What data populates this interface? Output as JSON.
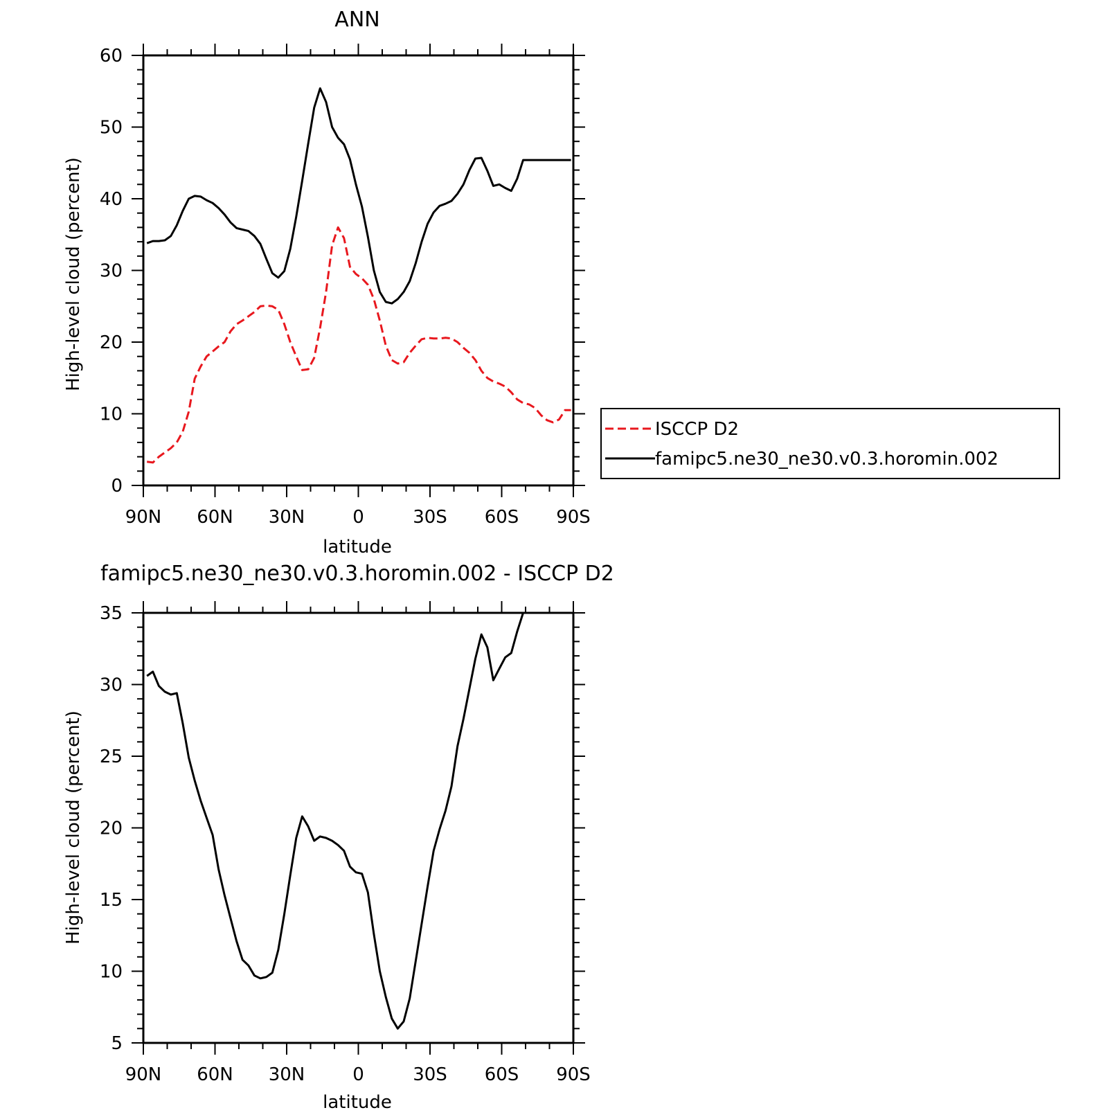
{
  "chart_data": [
    {
      "type": "line",
      "title": "ANN",
      "xlabel": "latitude",
      "ylabel": "High-level cloud (percent)",
      "xlim": [
        90,
        -90
      ],
      "ylim": [
        0,
        60
      ],
      "xticks": [
        {
          "value": 90,
          "label": "90N"
        },
        {
          "value": 60,
          "label": "60N"
        },
        {
          "value": 30,
          "label": "30N"
        },
        {
          "value": 0,
          "label": "0"
        },
        {
          "value": -30,
          "label": "30S"
        },
        {
          "value": -60,
          "label": "60S"
        },
        {
          "value": -90,
          "label": "90S"
        }
      ],
      "yticks": [
        {
          "value": 0,
          "label": "0"
        },
        {
          "value": 10,
          "label": "10"
        },
        {
          "value": 20,
          "label": "20"
        },
        {
          "value": 30,
          "label": "30"
        },
        {
          "value": 40,
          "label": "40"
        },
        {
          "value": 50,
          "label": "50"
        },
        {
          "value": 60,
          "label": "60"
        }
      ],
      "grid": false,
      "legend_position": "right",
      "series": [
        {
          "name": "ISCCP D2",
          "color": "#e8181e",
          "dash": "dashed",
          "x": [
            88.5,
            86,
            83.5,
            81,
            78.5,
            76,
            73.5,
            71,
            68.5,
            66,
            63.5,
            61,
            58.5,
            56,
            53.5,
            51,
            48.5,
            46,
            43.5,
            41,
            38.5,
            36,
            33.5,
            31,
            28.5,
            26,
            23.5,
            21,
            18.5,
            16,
            13.5,
            11,
            8.5,
            6,
            3.5,
            1,
            -1.5,
            -4,
            -6.5,
            -9,
            -11.5,
            -14,
            -16.5,
            -19,
            -21.5,
            -24,
            -26.5,
            -29,
            -31.5,
            -34,
            -36.5,
            -39,
            -41.5,
            -44,
            -46.5,
            -49,
            -51.5,
            -54,
            -56.5,
            -59,
            -61.5,
            -64,
            -66.5,
            -69,
            -71.5,
            -74,
            -76.5,
            -79,
            -81.5,
            -84,
            -86.5,
            -89
          ],
          "y": [
            3.3,
            3.2,
            4,
            4.6,
            5.2,
            6,
            7.5,
            10.3,
            14.9,
            16.6,
            18,
            18.7,
            19.4,
            20,
            21.5,
            22.5,
            23,
            23.6,
            24.2,
            25,
            25.1,
            25,
            24.5,
            22.5,
            20,
            18,
            16.1,
            16.2,
            17.8,
            22,
            27,
            33.5,
            36,
            34.5,
            30.5,
            29.5,
            28.9,
            28,
            26,
            23,
            19.5,
            17.5,
            17,
            17.2,
            18.5,
            19.5,
            20.4,
            20.6,
            20.5,
            20.5,
            20.6,
            20.5,
            20,
            19.2,
            18.5,
            17.5,
            16,
            15,
            14.5,
            14.2,
            13.8,
            13,
            12,
            11.5,
            11.3,
            10.8,
            9.8,
            9.1,
            8.8,
            9.2,
            10.5,
            10.5
          ]
        },
        {
          "name": "famipc5.ne30_ne30.v0.3.horomin.002",
          "color": "#000000",
          "dash": "solid",
          "x": [
            88.5,
            86,
            83.5,
            81,
            78.5,
            76,
            73.5,
            71,
            68.5,
            66,
            63.5,
            61,
            58.5,
            56,
            53.5,
            51,
            48.5,
            46,
            43.5,
            41,
            38.5,
            36,
            33.5,
            31,
            28.5,
            26,
            23.5,
            21,
            18.5,
            16,
            13.5,
            11,
            8.5,
            6,
            3.5,
            1,
            -1.5,
            -4,
            -6.5,
            -9,
            -11.5,
            -14,
            -16.5,
            -19,
            -21.5,
            -24,
            -26.5,
            -29,
            -31.5,
            -34,
            -36.5,
            -39,
            -41.5,
            -44,
            -46.5,
            -49,
            -51.5,
            -54,
            -56.5,
            -59,
            -61.5,
            -64,
            -66.5,
            -69,
            -71.5,
            -74,
            -76.5,
            -79,
            -81.5,
            -84,
            -86.5,
            -89
          ],
          "y": [
            33.8,
            34.1,
            34.1,
            34.2,
            34.8,
            36.3,
            38.3,
            40,
            40.4,
            40.3,
            39.8,
            39.4,
            38.7,
            37.8,
            36.7,
            35.9,
            35.7,
            35.5,
            34.8,
            33.7,
            31.6,
            29.6,
            29,
            29.9,
            33,
            37.5,
            42.5,
            47.7,
            52.7,
            55.4,
            53.5,
            50,
            48.5,
            47.6,
            45.5,
            42,
            38.9,
            34.7,
            30,
            27,
            25.6,
            25.4,
            26,
            27,
            28.5,
            31,
            34,
            36.5,
            38.1,
            39,
            39.3,
            39.7,
            40.7,
            42,
            44,
            45.6,
            45.7,
            43.9,
            41.8,
            42,
            41.5,
            41.1,
            42.8,
            45.4,
            45.4,
            45.4,
            45.4,
            45.4,
            45.4,
            45.4,
            45.4,
            45.4
          ]
        }
      ]
    },
    {
      "type": "line",
      "title": "famipc5.ne30_ne30.v0.3.horomin.002 - ISCCP D2",
      "xlabel": "latitude",
      "ylabel": "High-level cloud (percent)",
      "xlim": [
        90,
        -90
      ],
      "ylim": [
        5,
        35
      ],
      "xticks": [
        {
          "value": 90,
          "label": "90N"
        },
        {
          "value": 60,
          "label": "60N"
        },
        {
          "value": 30,
          "label": "30N"
        },
        {
          "value": 0,
          "label": "0"
        },
        {
          "value": -30,
          "label": "30S"
        },
        {
          "value": -60,
          "label": "60S"
        },
        {
          "value": -90,
          "label": "90S"
        }
      ],
      "yticks": [
        {
          "value": 5,
          "label": "5"
        },
        {
          "value": 10,
          "label": "10"
        },
        {
          "value": 15,
          "label": "15"
        },
        {
          "value": 20,
          "label": "20"
        },
        {
          "value": 25,
          "label": "25"
        },
        {
          "value": 30,
          "label": "30"
        },
        {
          "value": 35,
          "label": "35"
        }
      ],
      "grid": false,
      "series": [
        {
          "name": "",
          "color": "#000000",
          "dash": "solid",
          "x": [
            88.5,
            86,
            83.5,
            81,
            78.5,
            76,
            73.5,
            71,
            68.5,
            66,
            63.5,
            61,
            58.5,
            56,
            53.5,
            51,
            48.5,
            46,
            43.5,
            41,
            38.5,
            36,
            33.5,
            31,
            28.5,
            26,
            23.5,
            21,
            18.5,
            16,
            13.5,
            11,
            8.5,
            6,
            3.5,
            1,
            -1.5,
            -4,
            -6.5,
            -9,
            -11.5,
            -14,
            -16.5,
            -19,
            -21.5,
            -24,
            -26.5,
            -29,
            -31.5,
            -34,
            -36.5,
            -39,
            -41.5,
            -44,
            -46.5,
            -49,
            -51.5,
            -54,
            -56.5,
            -59,
            -61.5,
            -64,
            -66.5,
            -69,
            -71.5,
            -74,
            -76.5,
            -79,
            -81.5,
            -84,
            -86.5,
            -89
          ],
          "y": [
            30.6,
            30.9,
            29.9,
            29.5,
            29.3,
            29.4,
            27.3,
            24.9,
            23.3,
            21.9,
            20.7,
            19.5,
            17.1,
            15.3,
            13.7,
            12.1,
            10.8,
            10.4,
            9.7,
            9.5,
            9.6,
            9.9,
            11.5,
            14,
            16.7,
            19.3,
            20.8,
            20.1,
            19.1,
            19.4,
            19.3,
            19.1,
            18.8,
            18.4,
            17.3,
            16.9,
            16.8,
            15.5,
            12.6,
            10,
            8.2,
            6.7,
            6,
            6.5,
            8.1,
            10.7,
            13.3,
            15.9,
            18.4,
            19.9,
            21.2,
            22.9,
            25.7,
            27.6,
            29.7,
            31.8,
            33.5,
            32.6,
            30.3,
            31.1,
            31.9,
            32.2,
            33.7,
            35,
            35,
            35,
            35,
            35,
            35,
            35,
            35,
            35
          ]
        }
      ]
    }
  ]
}
